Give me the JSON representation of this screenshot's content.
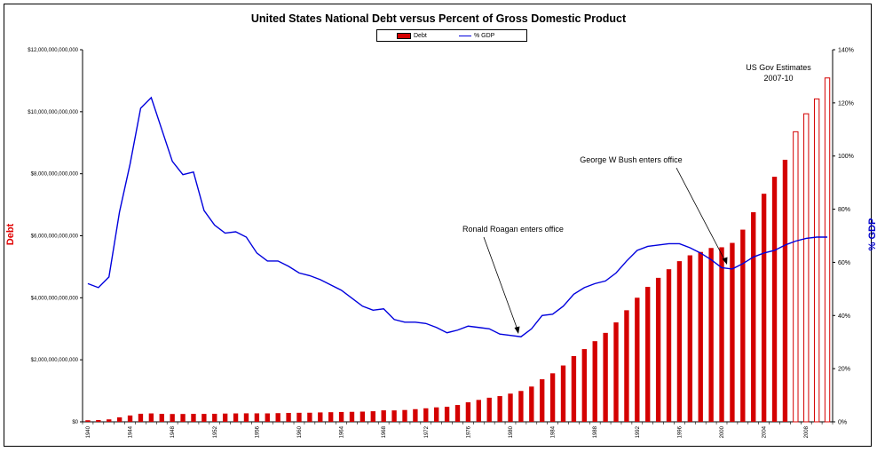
{
  "chart_data": {
    "type": "bar",
    "title": "United States National Debt versus Percent of Gross Domestic Product",
    "ylabel_left": "Debt",
    "ylabel_right": "% GDP",
    "legend": {
      "bar": "Debt",
      "line": "% GDP",
      "placement": "top-center"
    },
    "years": [
      1940,
      1941,
      1942,
      1943,
      1944,
      1945,
      1946,
      1947,
      1948,
      1949,
      1950,
      1951,
      1952,
      1953,
      1954,
      1955,
      1956,
      1957,
      1958,
      1959,
      1960,
      1961,
      1962,
      1963,
      1964,
      1965,
      1966,
      1967,
      1968,
      1969,
      1970,
      1971,
      1972,
      1973,
      1974,
      1975,
      1976,
      1977,
      1978,
      1979,
      1980,
      1981,
      1982,
      1983,
      1984,
      1985,
      1986,
      1987,
      1988,
      1989,
      1990,
      1991,
      1992,
      1993,
      1994,
      1995,
      1996,
      1997,
      1998,
      1999,
      2000,
      2001,
      2002,
      2003,
      2004,
      2005,
      2006,
      2007,
      2008,
      2009,
      2010
    ],
    "x_tick_labels": [
      "1940",
      "1944",
      "1948",
      "1952",
      "1956",
      "1960",
      "1964",
      "1968",
      "1972",
      "1976",
      "1980",
      "1984",
      "1988",
      "1992",
      "1996",
      "2000",
      "2004",
      "2008"
    ],
    "left_ticks": [
      "$0",
      "$2,000,000,000,000",
      "$4,000,000,000,000",
      "$6,000,000,000,000",
      "$8,000,000,000,000",
      "$10,000,000,000,000",
      "$12,000,000,000,000"
    ],
    "right_ticks": [
      "0%",
      "20%",
      "40%",
      "60%",
      "80%",
      "100%",
      "120%",
      "140%"
    ],
    "ylim_left": [
      0,
      12000000000000
    ],
    "ylim_right": [
      0,
      140
    ],
    "series": [
      {
        "name": "Debt",
        "kind": "bar",
        "color": "#d40000",
        "estimated_from_index": 67,
        "values": [
          51,
          58,
          79,
          143,
          204,
          260,
          271,
          257,
          252,
          253,
          257,
          255,
          259,
          266,
          271,
          274,
          273,
          272,
          280,
          287,
          291,
          293,
          303,
          310,
          317,
          322,
          329,
          341,
          370,
          368,
          381,
          408,
          436,
          466,
          484,
          542,
          629,
          706,
          777,
          829,
          909,
          995,
          1137,
          1372,
          1565,
          1817,
          2121,
          2346,
          2601,
          2868,
          3206,
          3598,
          4002,
          4351,
          4643,
          4921,
          5181,
          5369,
          5478,
          5606,
          5629,
          5770,
          6198,
          6760,
          7355,
          7905,
          8451,
          9355,
          9935,
          10414,
          11090
        ]
      },
      {
        "name": "% GDP",
        "kind": "line",
        "color": "#0000dd",
        "values": [
          52,
          50.5,
          54.5,
          79,
          97,
          118,
          122,
          110,
          98,
          93,
          94,
          79.5,
          74,
          71,
          71.5,
          69.5,
          63.5,
          60.5,
          60.5,
          58.5,
          56,
          55,
          53.5,
          51.5,
          49.5,
          46.5,
          43.5,
          42,
          42.5,
          38.5,
          37.5,
          37.5,
          37,
          35.5,
          33.5,
          34.5,
          36,
          35.5,
          35,
          33,
          32.5,
          32,
          35,
          40,
          40.5,
          43.5,
          48,
          50.5,
          52,
          53,
          56,
          60.5,
          64.5,
          66,
          66.5,
          67,
          67,
          65.5,
          63.5,
          61,
          58,
          57.5,
          59.5,
          62,
          63.5,
          64.5,
          66.5,
          68,
          69,
          69.5,
          69.5
        ]
      }
    ],
    "annotations": [
      {
        "text": "Ronald Roagan enters office",
        "year": 1981
      },
      {
        "text": "George W Bush enters office",
        "year": 2001
      },
      {
        "text": "US Gov Estimates",
        "line2": "2007-10"
      }
    ]
  }
}
